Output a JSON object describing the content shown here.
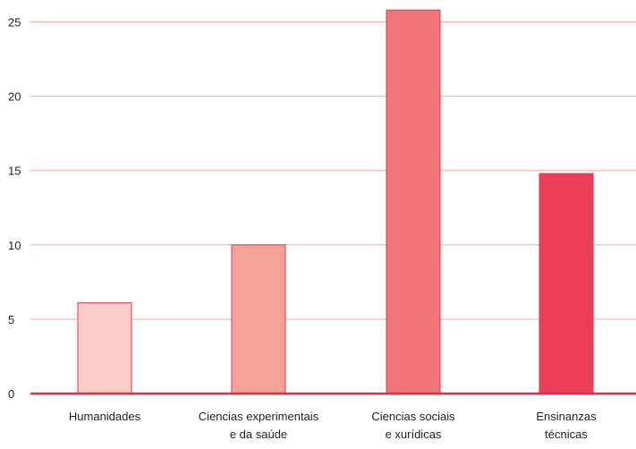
{
  "chart_data": {
    "type": "bar",
    "title": "",
    "xlabel": "",
    "ylabel": "",
    "categories": [
      [
        "Humanidades"
      ],
      [
        "Ciencias experimentais",
        "e da saúde"
      ],
      [
        "Ciencias sociais",
        "e xurídicas"
      ],
      [
        "Ensinanzas",
        "técnicas"
      ]
    ],
    "values": [
      6.1,
      10.0,
      25.8,
      14.8
    ],
    "ylim": [
      0,
      26
    ],
    "yticks": [
      "0",
      "5",
      "10",
      "15",
      "20",
      "25"
    ],
    "ytick_values": [
      0,
      5,
      10,
      15,
      20,
      25
    ],
    "grid": true,
    "colors": {
      "bars": [
        "#fbcdc8",
        "#f5a29a",
        "#f07679",
        "#ec3e57"
      ],
      "bar_stroke": "#e8344f",
      "grid": "#f3a6a8",
      "axis": "#d9324c",
      "text": "#222222"
    }
  }
}
